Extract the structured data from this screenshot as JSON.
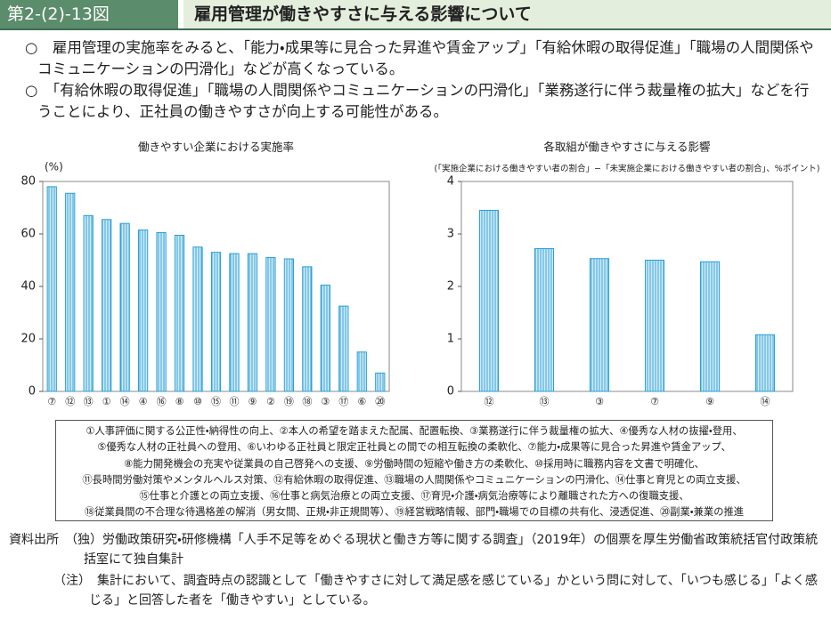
{
  "header": {
    "figure_number": "第2-(2)-13図",
    "title": "雇用管理が働きやすさに与える影響について"
  },
  "summary": [
    "○　雇用管理の実施率をみると、「能力・成果等に見合った昇進や賃金アップ」「有給休暇の取得促進」「職場の人間関係やコミュニケーションの円滑化」などが高くなっている。",
    "○　「有給休暇の取得促進」「職場の人間関係やコミュニケーションの円滑化」「業務遂行に伴う裁量権の拡大」などを行うことにより、正社員の働きやすさが向上する可能性がある。"
  ],
  "chart_data": [
    {
      "type": "bar",
      "title": "働きやすい企業における実施率",
      "y_label": "(%)",
      "categories": [
        "⑦",
        "⑫",
        "⑬",
        "①",
        "⑭",
        "④",
        "⑯",
        "⑧",
        "⑩",
        "⑮",
        "⑪",
        "⑨",
        "②",
        "⑲",
        "⑱",
        "③",
        "⑰",
        "⑥",
        "⑳"
      ],
      "values": [
        78,
        75.5,
        67,
        65.5,
        64,
        61.5,
        60.5,
        59.5,
        55,
        53,
        52.5,
        52.5,
        51,
        50.5,
        47.5,
        40.5,
        32.5,
        15,
        7
      ],
      "color": "#2a9fd6",
      "ylim": [
        0,
        80
      ],
      "yticks": [
        0,
        20,
        40,
        60,
        80
      ],
      "grid": false
    },
    {
      "type": "bar",
      "title": "各取組が働きやすさに与える影響",
      "subtitle": "(「実施企業における働きやすい者の割合」−「未実施企業における働きやすい者の割合」、%ポイント)",
      "categories": [
        "⑫",
        "⑬",
        "③",
        "⑦",
        "⑨",
        "⑭"
      ],
      "values": [
        3.45,
        2.72,
        2.53,
        2.5,
        2.47,
        1.08
      ],
      "color": "#2a9fd6",
      "ylim": [
        0,
        4
      ],
      "yticks": [
        0,
        1,
        2,
        3,
        4
      ],
      "grid": false
    }
  ],
  "legend_note": [
    "①人事評価に関する公正性・納得性の向上、②本人の希望を踏まえた配属、配置転換、③業務遂行に伴う裁量権の拡大、④優秀な人材の抜擢・登用、",
    "⑤優秀な人材の正社員への登用、⑥いわゆる正社員と限定正社員との間での相互転換の柔軟化、⑦能力・成果等に見合った昇進や賃金アップ、",
    "⑧能力開発機会の充実や従業員の自己啓発への支援、⑨労働時間の短縮や働き方の柔軟化、⑩採用時に職務内容を文書で明確化、",
    "⑪長時間労働対策やメンタルヘルス対策、⑫有給休暇の取得促進、⑬職場の人間関係やコミュニケーションの円滑化、⑭仕事と育児との両立支援、",
    "⑮仕事と介護との両立支援、⑯仕事と病気治療との両立支援、⑰育児・介護・病気治療等により離職された方への復職支援、",
    "⑱従業員間の不合理な待遇格差の解消（男女間、正規・非正規間等）、⑲経営戦略情報、部門・職場での目標の共有化、浸透促進、⑳副業・兼業の推進"
  ],
  "source": "資料出所　（独）労働政策研究・研修機構「人手不足等をめぐる現状と働き方等に関する調査」（2019年）の個票を厚生労働省政策統括官付政策統括室にて独自集計",
  "note": "（注）　集計において、調査時点の認識として「働きやすさに対して満足感を感じている」かという問に対して、「いつも感じる」「よく感じる」と回答した者を「働きやすい」としている。"
}
